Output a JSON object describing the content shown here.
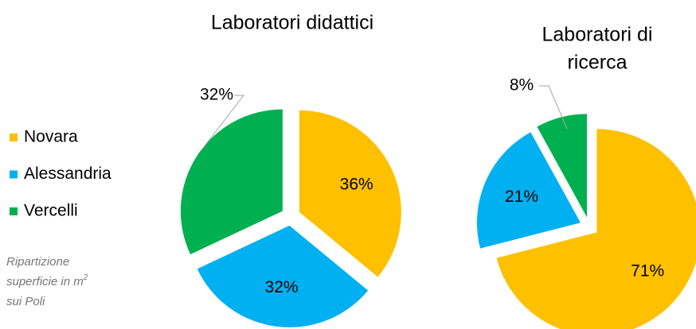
{
  "legend": [
    {
      "name": "Novara",
      "color": "#FFC000"
    },
    {
      "name": "Alessandria",
      "color": "#00B0F0"
    },
    {
      "name": "Vercelli",
      "color": "#00B050"
    }
  ],
  "caption": {
    "text": "Ripartizione superficie in m",
    "sup": "2",
    "after": "sui Poli"
  },
  "chart_data": [
    {
      "type": "pie",
      "title": "Laboratori didattici",
      "values": [
        36,
        32,
        32
      ],
      "value_labels": [
        "36%",
        "32%",
        "32%"
      ],
      "colors": [
        "#FFC000",
        "#00B0F0",
        "#00B050"
      ]
    },
    {
      "type": "pie",
      "title": [
        "Laboratori di",
        "ricerca"
      ],
      "values": [
        71,
        21,
        8
      ],
      "value_labels": [
        "71%",
        "21%",
        "8%"
      ],
      "colors": [
        "#FFC000",
        "#00B0F0",
        "#00B050"
      ]
    }
  ]
}
